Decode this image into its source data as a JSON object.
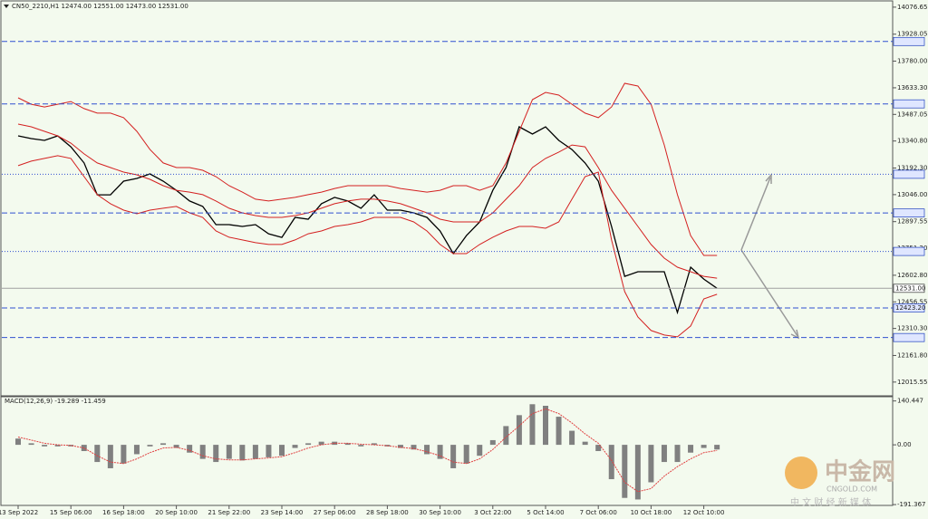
{
  "chart_data": [
    {
      "type": "line",
      "title": "CN50_2210,H1  12474.00 12551.00 12473.00 12531.00",
      "categories": [
        "13 Sep 2022",
        null,
        null,
        null,
        "15 Sep 06:00",
        null,
        null,
        null,
        "16 Sep 18:00",
        null,
        null,
        null,
        "20 Sep 10:00",
        null,
        null,
        null,
        "21 Sep 22:00",
        null,
        null,
        null,
        "23 Sep 14:00",
        null,
        null,
        null,
        "27 Sep 06:00",
        null,
        null,
        null,
        "28 Sep 18:00",
        null,
        null,
        null,
        "30 Sep 10:00",
        null,
        null,
        null,
        "3 Oct 22:00",
        null,
        null,
        null,
        "5 Oct 14:00",
        null,
        null,
        null,
        "7 Oct 06:00",
        null,
        null,
        null,
        "10 Oct 18:00",
        null,
        null,
        null,
        "12 Oct 10:00",
        null
      ],
      "series": [
        {
          "color": "#000000",
          "values": [
            13369,
            13354,
            13344,
            13369,
            13309,
            13220,
            13045,
            13045,
            13120,
            13135,
            13160,
            13120,
            13070,
            13011,
            12981,
            12881,
            12881,
            12871,
            12881,
            12831,
            12811,
            12921,
            12911,
            12996,
            13031,
            13011,
            12971,
            13045,
            12961,
            12961,
            12946,
            12921,
            12846,
            12722,
            12821,
            12896,
            13070,
            13195,
            13419,
            13379,
            13419,
            13344,
            13294,
            13220,
            13120,
            12871,
            12597,
            12622,
            12622,
            12622,
            12398,
            12647,
            12582,
            12531
          ]
        },
        {
          "color": "#d42020",
          "values": [
            13578,
            13543,
            13528,
            13543,
            13558,
            13519,
            13494,
            13494,
            13469,
            13394,
            13294,
            13220,
            13195,
            13195,
            13180,
            13145,
            13095,
            13060,
            13021,
            13011,
            13021,
            13031,
            13046,
            13060,
            13080,
            13095,
            13095,
            13095,
            13095,
            13080,
            13070,
            13060,
            13070,
            13095,
            13095,
            13070,
            13095,
            13220,
            13394,
            13568,
            13608,
            13593,
            13543,
            13494,
            13469,
            13528,
            13658,
            13643,
            13543,
            13319,
            13046,
            12821,
            12712,
            12712
          ]
        },
        {
          "color": "#d42020",
          "values": [
            13434,
            13419,
            13394,
            13369,
            13329,
            13270,
            13220,
            13195,
            13170,
            13155,
            13130,
            13095,
            13070,
            13060,
            13046,
            13011,
            12971,
            12946,
            12931,
            12921,
            12921,
            12931,
            12946,
            12971,
            12996,
            13011,
            13021,
            13021,
            13011,
            12996,
            12971,
            12946,
            12911,
            12896,
            12896,
            12896,
            12946,
            13021,
            13095,
            13195,
            13245,
            13280,
            13319,
            13309,
            13195,
            13070,
            12971,
            12871,
            12772,
            12697,
            12647,
            12622,
            12597,
            12587
          ]
        },
        {
          "color": "#d42020",
          "values": [
            13205,
            13230,
            13245,
            13260,
            13245,
            13145,
            13046,
            12996,
            12961,
            12941,
            12961,
            12971,
            12981,
            12946,
            12921,
            12846,
            12812,
            12797,
            12782,
            12772,
            12772,
            12797,
            12831,
            12846,
            12871,
            12881,
            12896,
            12921,
            12921,
            12921,
            12896,
            12846,
            12772,
            12722,
            12722,
            12772,
            12812,
            12846,
            12871,
            12871,
            12861,
            12896,
            13021,
            13145,
            13170,
            12797,
            12513,
            12373,
            12299,
            12274,
            12264,
            12324,
            12473,
            12498
          ]
        }
      ],
      "ylim": [
        11940,
        14106
      ],
      "yticks": [
        14076.65,
        13928.05,
        {
          "value": 13780,
          "label": "13780.00"
        },
        {
          "value": 13633.3,
          "label": "13633.30"
        },
        13487.05,
        {
          "value": 13340.8,
          "label": "13340.80"
        },
        {
          "value": 13192.3,
          "label": "13192.30"
        },
        {
          "value": 13046,
          "label": "13046.00"
        },
        12897.55,
        {
          "value": 12751.2,
          "label": "12751.20"
        },
        {
          "value": 12602.8,
          "label": "12602.80"
        },
        12456.55,
        {
          "value": 12310.3,
          "label": "12310.30"
        },
        {
          "value": 12161.8,
          "label": "12161.80"
        },
        12015.55
      ],
      "levels": [
        {
          "value": 13887.88,
          "style": "dashed"
        },
        {
          "value": 13544.84,
          "style": "dashed"
        },
        {
          "value": 13157.84,
          "style": "dotted"
        },
        {
          "value": 12945.04,
          "style": "dashed"
        },
        {
          "value": 12733.68,
          "style": "dotted"
        },
        {
          "value": 12531,
          "label": "12531.00",
          "style": "solid"
        },
        {
          "value": 12423.2,
          "label": "12423.20",
          "style": "dashed"
        },
        {
          "value": 12260.31,
          "style": "dashed"
        }
      ]
    },
    {
      "type": "bar",
      "title": "MACD(12,26,9) -19.289 -11.459",
      "series": [
        {
          "color": "#808080",
          "values": [
            20,
            5,
            -5,
            -5,
            -5,
            -20,
            -55,
            -75,
            -60,
            -30,
            -5,
            5,
            -10,
            -25,
            -45,
            -55,
            -45,
            -50,
            -45,
            -40,
            -35,
            -10,
            5,
            10,
            10,
            5,
            -5,
            5,
            -5,
            -10,
            -15,
            -30,
            -45,
            -75,
            -60,
            -35,
            15,
            60,
            95,
            130,
            125,
            90,
            45,
            10,
            -20,
            -110,
            -170,
            -175,
            -120,
            -55,
            -55,
            -25,
            -10,
            -15
          ]
        },
        {
          "color": "#e04040",
          "values": [
            25,
            15,
            5,
            0,
            -2,
            -10,
            -35,
            -55,
            -60,
            -45,
            -25,
            -10,
            -8,
            -18,
            -35,
            -45,
            -48,
            -48,
            -45,
            -42,
            -38,
            -25,
            -10,
            0,
            5,
            5,
            2,
            0,
            -3,
            -8,
            -12,
            -22,
            -35,
            -55,
            -60,
            -45,
            -15,
            25,
            60,
            100,
            115,
            100,
            70,
            35,
            5,
            -50,
            -120,
            -150,
            -140,
            -100,
            -70,
            -45,
            -25,
            -18
          ]
        }
      ],
      "ylim": [
        -194,
        154
      ],
      "yticks": [
        140.447,
        {
          "value": 0,
          "label": "0.00"
        },
        -191.367
      ]
    }
  ],
  "watermark": {
    "logo": "中金网",
    "site": "CNGOLD.COM",
    "tagline": "中 文 财 经 新 媒 体"
  }
}
